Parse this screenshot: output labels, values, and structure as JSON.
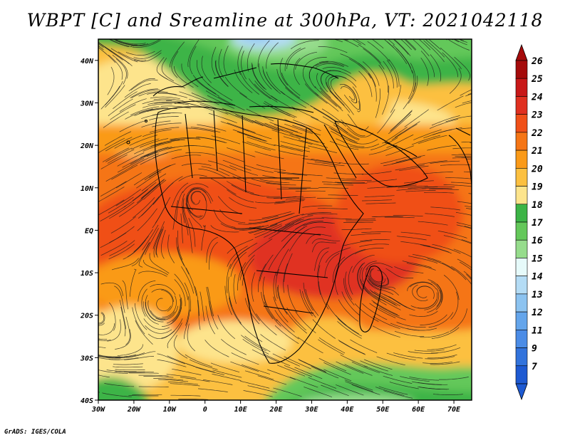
{
  "title": "WBPT [C] and Sreamline at 300hPa, VT: 2021042118",
  "credit": "GrADS: IGES/COLA",
  "map": {
    "lon_range": [
      -30,
      75
    ],
    "lat_range": [
      -40,
      45
    ],
    "x_ticks": [
      {
        "lon": -30,
        "label": "30W"
      },
      {
        "lon": -20,
        "label": "20W"
      },
      {
        "lon": -10,
        "label": "10W"
      },
      {
        "lon": 0,
        "label": "0"
      },
      {
        "lon": 10,
        "label": "10E"
      },
      {
        "lon": 20,
        "label": "20E"
      },
      {
        "lon": 30,
        "label": "30E"
      },
      {
        "lon": 40,
        "label": "40E"
      },
      {
        "lon": 50,
        "label": "50E"
      },
      {
        "lon": 60,
        "label": "60E"
      },
      {
        "lon": 70,
        "label": "70E"
      }
    ],
    "y_ticks": [
      {
        "lat": 40,
        "label": "40N"
      },
      {
        "lat": 30,
        "label": "30N"
      },
      {
        "lat": 20,
        "label": "20N"
      },
      {
        "lat": 10,
        "label": "10N"
      },
      {
        "lat": 0,
        "label": "EQ"
      },
      {
        "lat": -10,
        "label": "10S"
      },
      {
        "lat": -20,
        "label": "20S"
      },
      {
        "lat": -30,
        "label": "30S"
      },
      {
        "lat": -40,
        "label": "40S"
      }
    ]
  },
  "colorbar": {
    "levels": [
      {
        "label": "26",
        "color": "#a50b0b"
      },
      {
        "label": "25",
        "color": "#c81818"
      },
      {
        "label": "24",
        "color": "#e03020"
      },
      {
        "label": "23",
        "color": "#f05018"
      },
      {
        "label": "22",
        "color": "#f57515"
      },
      {
        "label": "21",
        "color": "#fa9a18"
      },
      {
        "label": "20",
        "color": "#fcc040"
      },
      {
        "label": "19",
        "color": "#fde48c"
      },
      {
        "label": "18",
        "color": "#3cb446"
      },
      {
        "label": "17",
        "color": "#64c85a"
      },
      {
        "label": "16",
        "color": "#96dc8c"
      },
      {
        "label": "15",
        "color": "#e6fafa"
      },
      {
        "label": "14",
        "color": "#b4dcf5"
      },
      {
        "label": "13",
        "color": "#8cc3f0"
      },
      {
        "label": "12",
        "color": "#64a5eb"
      },
      {
        "label": "11",
        "color": "#4b8ce6"
      },
      {
        "label": "9",
        "color": "#3273dc"
      },
      {
        "label": "7",
        "color": "#1e5ad2"
      }
    ]
  }
}
